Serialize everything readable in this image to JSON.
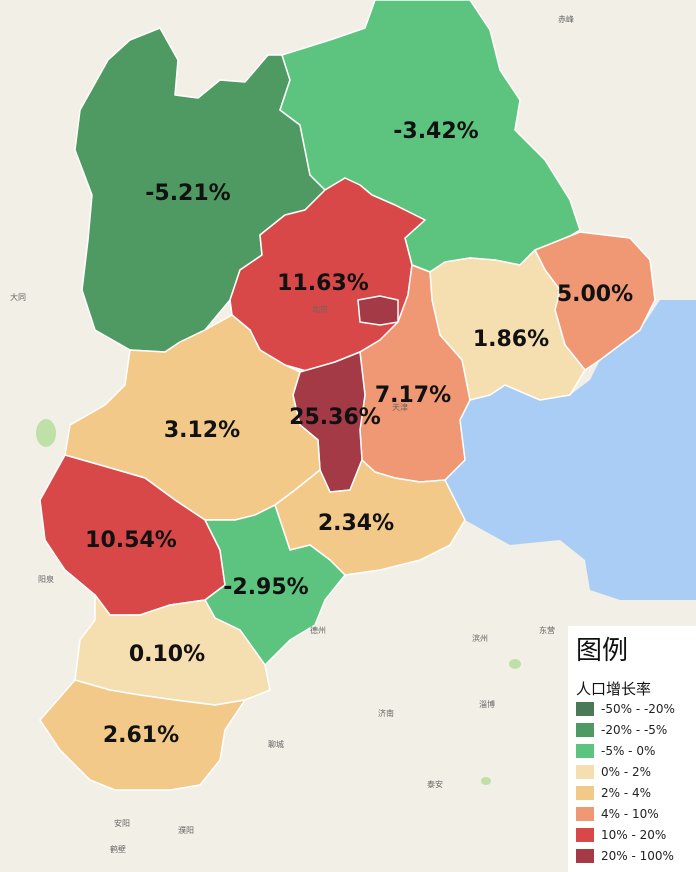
{
  "legend": {
    "title": "图例",
    "subtitle": "人口增长率",
    "items": [
      {
        "label": "-50% - -20%",
        "color": "#4a7a55"
      },
      {
        "label": "-20% - -5%",
        "color": "#4f9a62"
      },
      {
        "label": "-5% - 0%",
        "color": "#5cc47e"
      },
      {
        "label": "0% - 2%",
        "color": "#f5deb0"
      },
      {
        "label": "2% - 4%",
        "color": "#f3c98a"
      },
      {
        "label": "4% - 10%",
        "color": "#f09773"
      },
      {
        "label": "10% - 20%",
        "color": "#d94848"
      },
      {
        "label": "20% - 100%",
        "color": "#a33a45"
      }
    ]
  },
  "regions": [
    {
      "name": "zhangjiakou",
      "value": "-5.21%",
      "color": "#4f9a62"
    },
    {
      "name": "chengde",
      "value": "-3.42%",
      "color": "#5cc47e"
    },
    {
      "name": "qinhuangdao",
      "value": "5.00%",
      "color": "#f09773"
    },
    {
      "name": "tangshan",
      "value": "1.86%",
      "color": "#f5deb0"
    },
    {
      "name": "beijing",
      "value": "11.63%",
      "color": "#d94848"
    },
    {
      "name": "tianjin",
      "value": "7.17%",
      "color": "#f09773"
    },
    {
      "name": "langfang",
      "value": "25.36%",
      "color": "#a33a45"
    },
    {
      "name": "baoding",
      "value": "3.12%",
      "color": "#f3c98a"
    },
    {
      "name": "cangzhou",
      "value": "2.34%",
      "color": "#f3c98a"
    },
    {
      "name": "shijiazhuang",
      "value": "10.54%",
      "color": "#d94848"
    },
    {
      "name": "hengshui",
      "value": "-2.95%",
      "color": "#5cc47e"
    },
    {
      "name": "xingtai",
      "value": "0.10%",
      "color": "#f5deb0"
    },
    {
      "name": "handan",
      "value": "2.61%",
      "color": "#f3c98a"
    }
  ],
  "base_labels": {
    "beijing": "北京",
    "tianjin": "天津",
    "jinan": "济南",
    "binzhou": "滨州",
    "dongying": "东营",
    "taian": "泰安",
    "liaocheng": "聊城",
    "dezhou": "德州",
    "zibo": "淄博",
    "chifeng": "赤峰",
    "datong": "大同",
    "yangquan": "阳泉",
    "anyang": "安阳",
    "puyang": "濮阳",
    "hebi": "鹤壁"
  },
  "colors": {
    "sea": "#a9cdf5",
    "land": "#f2efe6",
    "lake": "#bfe0a8"
  }
}
